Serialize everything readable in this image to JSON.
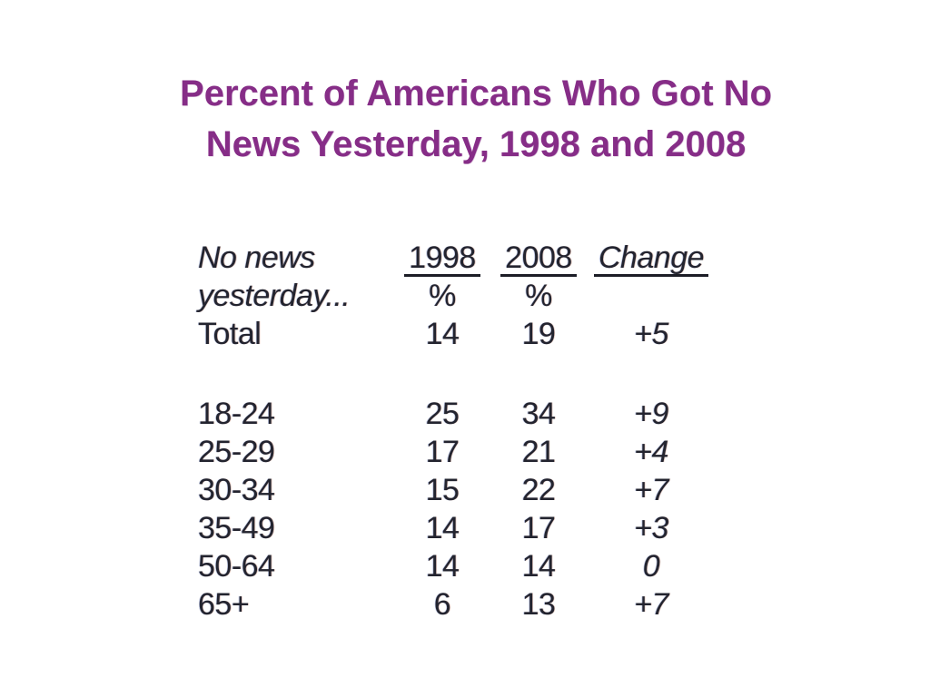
{
  "slide": {
    "title": {
      "line1": "Percent of Americans Who Got No",
      "line2": "News Yesterday, 1998 and 2008",
      "color": "#862d87"
    },
    "background_color": "#ffffff",
    "table_text_color": "#23242f"
  },
  "chart_data": {
    "type": "table",
    "title": "Percent of Americans Who Got No News Yesterday, 1998 and 2008",
    "row_header": {
      "line1": "No news",
      "line2": "yesterday..."
    },
    "columns": [
      "1998",
      "2008",
      "Change"
    ],
    "unit_row": [
      "%",
      "%",
      ""
    ],
    "rows": [
      {
        "label": "Total",
        "v1998": "14",
        "v2008": "19",
        "change": "+5"
      },
      {
        "label": "18-24",
        "v1998": "25",
        "v2008": "34",
        "change": "+9"
      },
      {
        "label": "25-29",
        "v1998": "17",
        "v2008": "21",
        "change": "+4"
      },
      {
        "label": "30-34",
        "v1998": "15",
        "v2008": "22",
        "change": "+7"
      },
      {
        "label": "35-49",
        "v1998": "14",
        "v2008": "17",
        "change": "+3"
      },
      {
        "label": "50-64",
        "v1998": "14",
        "v2008": "14",
        "change": "0"
      },
      {
        "label": "65+",
        "v1998": "6",
        "v2008": "13",
        "change": "+7"
      }
    ],
    "layout": {
      "gap_after_row": "Total",
      "numeric_columns_aligned": "center",
      "header_style": "underlined"
    }
  }
}
